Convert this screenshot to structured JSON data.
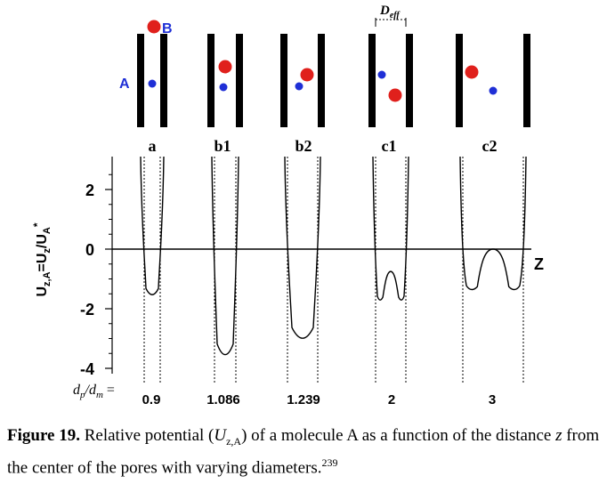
{
  "figure": {
    "pores": [
      {
        "label": "a",
        "ratio": "0.9",
        "well_min": -1.5
      },
      {
        "label": "b1",
        "ratio": "1.086",
        "well_min": -3.6
      },
      {
        "label": "b2",
        "ratio": "1.239",
        "well_min": -3.05
      },
      {
        "label": "c1",
        "ratio": "2",
        "well_min": -1.7
      },
      {
        "label": "c2",
        "ratio": "3",
        "well_min": -1.35
      }
    ],
    "molecule_a_label": "A",
    "molecule_b_label": "B",
    "d_eff_label": "D",
    "d_eff_sub": "eff",
    "z_axis_label": "Z",
    "ratio_label": "d",
    "ratio_label_sub1": "p",
    "ratio_label_mid": "/d",
    "ratio_label_sub2": "m",
    "ratio_label_eq": " =",
    "colors": {
      "molecule_a": "#1f2fd6",
      "molecule_b": "#e0201c",
      "wall": "#000000"
    }
  },
  "chart_data": {
    "type": "line",
    "title": "",
    "ylabel": "U_z,A = U_z / U_A*",
    "xlabel": "Z",
    "ylim": [
      -4.6,
      3.2
    ],
    "y_ticks": [
      "2",
      "0",
      "-2",
      "-4"
    ],
    "series": [
      {
        "name": "a",
        "well_min": -1.5
      },
      {
        "name": "b1",
        "well_min": -3.6
      },
      {
        "name": "b2",
        "well_min": -3.05
      },
      {
        "name": "c1",
        "well_min": -1.7,
        "center_max": -0.75
      },
      {
        "name": "c2",
        "well_min": -1.35,
        "center_max": 0.0
      }
    ]
  },
  "caption": {
    "label": "Figure 19.",
    "text_before": " Relative potential ",
    "text_after_symbol": " of a molecule A as a function of the distance ",
    "var_z": "z",
    "text_end": " from the center of the pores with varying diameters.",
    "reference": "239"
  }
}
